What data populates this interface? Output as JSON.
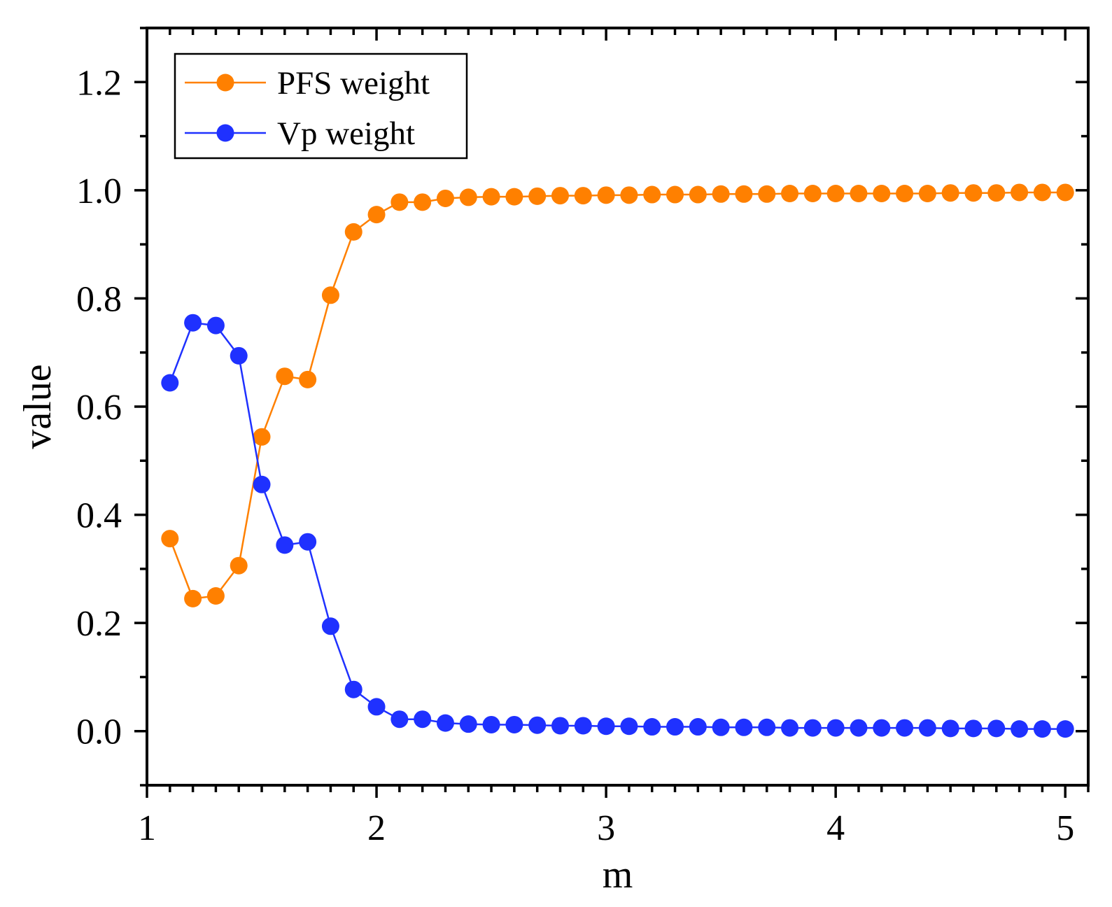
{
  "chart_data": {
    "type": "line",
    "title": "",
    "xlabel": "m",
    "ylabel": "value",
    "xlim": [
      1,
      5.1
    ],
    "ylim": [
      -0.1,
      1.3
    ],
    "xticks": [
      1,
      2,
      3,
      4,
      5
    ],
    "yticks": [
      0.0,
      0.2,
      0.4,
      0.6,
      0.8,
      1.0,
      1.2
    ],
    "xtick_labels": [
      "1",
      "2",
      "3",
      "4",
      "5"
    ],
    "ytick_labels": [
      "0.0",
      "0.2",
      "0.4",
      "0.6",
      "0.8",
      "1.0",
      "1.2"
    ],
    "grid": false,
    "legend_position": "top-left",
    "x": [
      1.1,
      1.2,
      1.3,
      1.4,
      1.5,
      1.6,
      1.7,
      1.8,
      1.9,
      2.0,
      2.1,
      2.2,
      2.3,
      2.4,
      2.5,
      2.6,
      2.7,
      2.8,
      2.9,
      3.0,
      3.1,
      3.2,
      3.3,
      3.4,
      3.5,
      3.6,
      3.7,
      3.8,
      3.9,
      4.0,
      4.1,
      4.2,
      4.3,
      4.4,
      4.5,
      4.6,
      4.7,
      4.8,
      4.9,
      5.0
    ],
    "series": [
      {
        "name": "PFS weight",
        "color": "#FF8000",
        "values": [
          0.356,
          0.245,
          0.25,
          0.306,
          0.544,
          0.656,
          0.65,
          0.806,
          0.923,
          0.955,
          0.978,
          0.978,
          0.985,
          0.987,
          0.988,
          0.988,
          0.989,
          0.99,
          0.99,
          0.991,
          0.991,
          0.992,
          0.992,
          0.992,
          0.993,
          0.993,
          0.993,
          0.994,
          0.994,
          0.994,
          0.994,
          0.994,
          0.994,
          0.994,
          0.995,
          0.995,
          0.995,
          0.996,
          0.996,
          0.996
        ]
      },
      {
        "name": "Vp weight",
        "color": "#1F31FF",
        "values": [
          0.644,
          0.755,
          0.75,
          0.694,
          0.456,
          0.344,
          0.35,
          0.194,
          0.077,
          0.045,
          0.022,
          0.022,
          0.015,
          0.013,
          0.012,
          0.012,
          0.011,
          0.01,
          0.01,
          0.009,
          0.009,
          0.008,
          0.008,
          0.008,
          0.007,
          0.007,
          0.007,
          0.006,
          0.006,
          0.006,
          0.006,
          0.006,
          0.006,
          0.006,
          0.005,
          0.005,
          0.005,
          0.004,
          0.004,
          0.004
        ]
      }
    ]
  }
}
